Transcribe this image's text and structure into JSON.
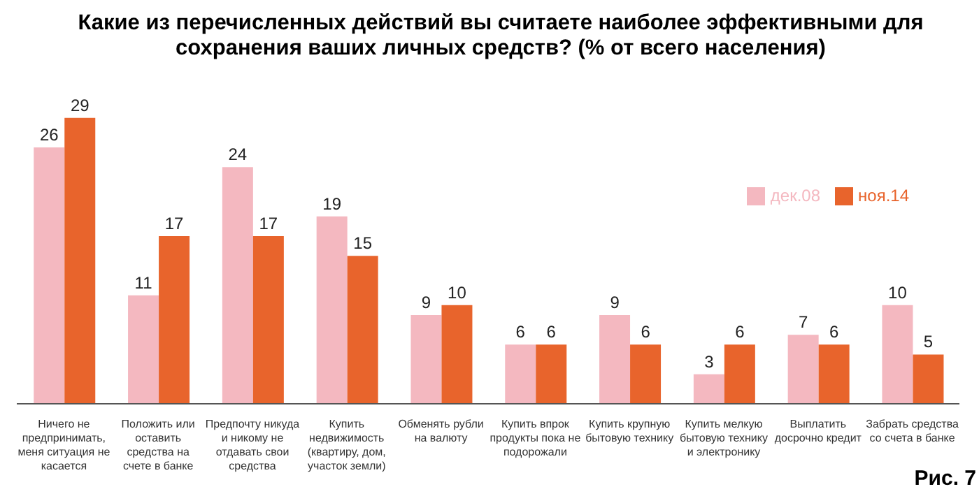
{
  "chart_data": {
    "type": "bar",
    "title": "Какие из перечисленных действий вы считаете наиболее эффективными для сохранения ваших личных средств? (% от всего населения)",
    "categories": [
      "Ничего не предпринимать, меня ситуация не касается",
      "Положить или оставить средства на счете в банке",
      "Предпочту никуда и никому не отдавать свои средства",
      "Купить недвижимость (квартиру, дом, участок земли)",
      "Обменять рубли на валюту",
      "Купить впрок продукты пока не подорожали",
      "Купить крупную бытовую технику",
      "Купить мелкую бытовую технику и электронику",
      "Выплатить досрочно кредит",
      "Забрать средства со счета в банке"
    ],
    "series": [
      {
        "name": "дек.08",
        "color": "#f4b8c0",
        "values": [
          26,
          11,
          24,
          19,
          9,
          6,
          9,
          3,
          7,
          10
        ]
      },
      {
        "name": "ноя.14",
        "color": "#e8642c",
        "values": [
          29,
          17,
          17,
          15,
          10,
          6,
          6,
          6,
          6,
          5
        ]
      }
    ],
    "data_labels": true,
    "legend": "top right",
    "annotations": [
      "Рис. 7"
    ]
  }
}
